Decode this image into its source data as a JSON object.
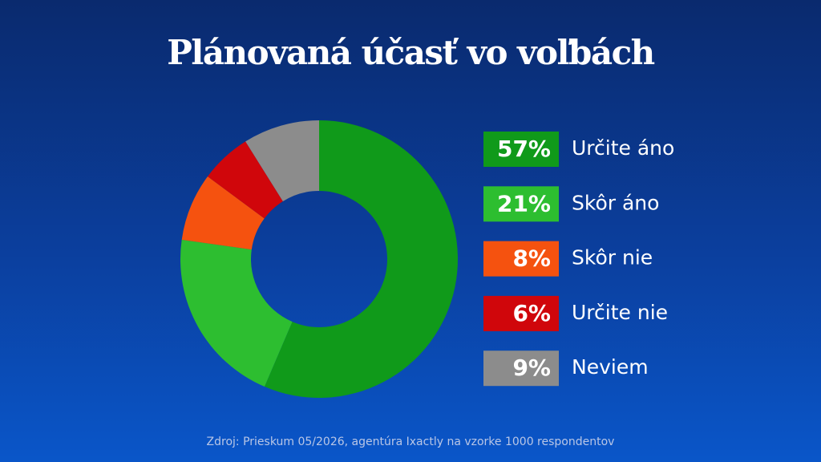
{
  "chart_data": {
    "type": "donut",
    "title": "Plánovaná účasť vo voľbách",
    "categories": [
      "Určite áno",
      "Skôr áno",
      "Skôr nie",
      "Určite nie",
      "Neviem"
    ],
    "values": [
      57,
      21,
      8,
      6,
      9
    ],
    "value_labels": [
      "57%",
      "21%",
      "8%",
      "6%",
      "9%"
    ],
    "colors": [
      "#109a1a",
      "#2dbe30",
      "#f5520f",
      "#d0060b",
      "#8c8c8c"
    ],
    "note": "Zdroj: Prieskum 05/2026, agentúra Ixactly na vzorke 1000 respondentov"
  }
}
